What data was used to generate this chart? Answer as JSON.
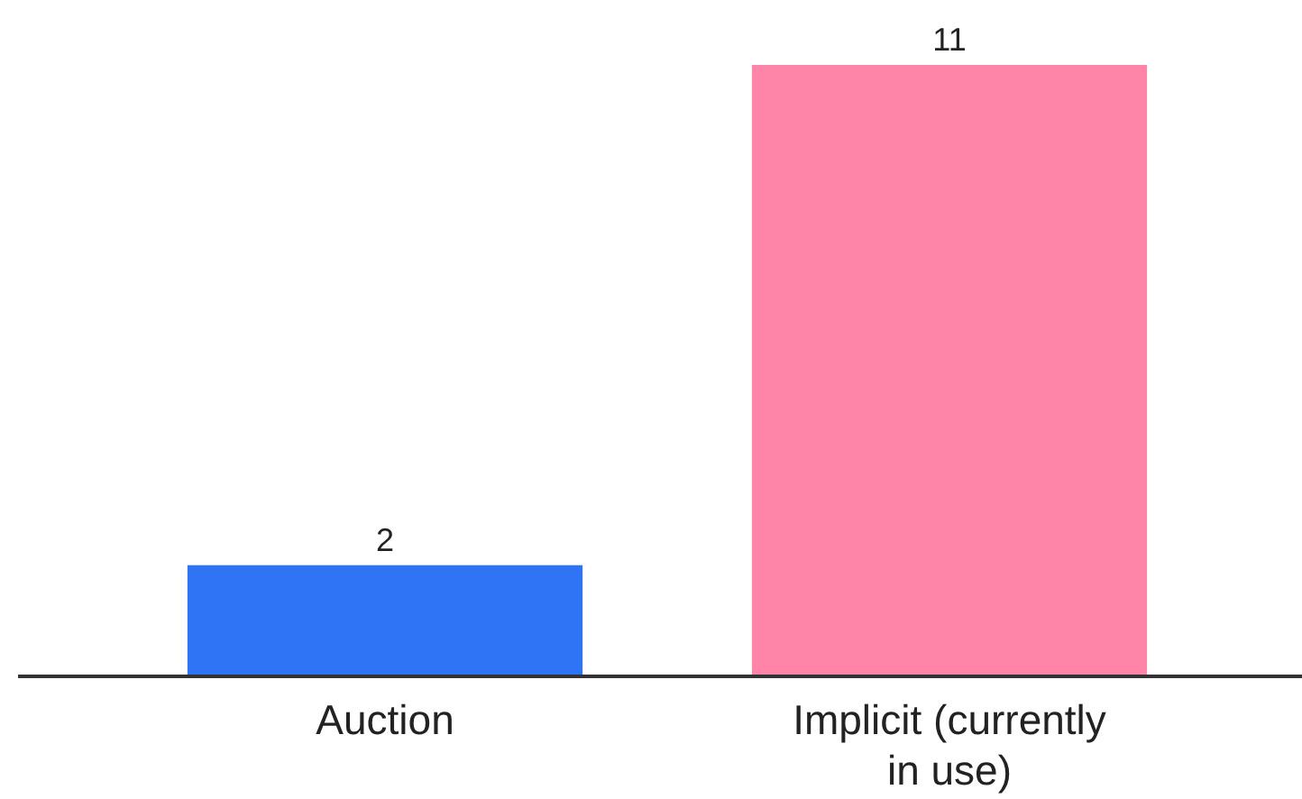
{
  "chart_data": {
    "type": "bar",
    "categories": [
      "Auction",
      "Implicit (currently in use)"
    ],
    "values": [
      2,
      11
    ],
    "colors": [
      "#2f74f5",
      "#ff85a8"
    ],
    "data_labels": true
  }
}
